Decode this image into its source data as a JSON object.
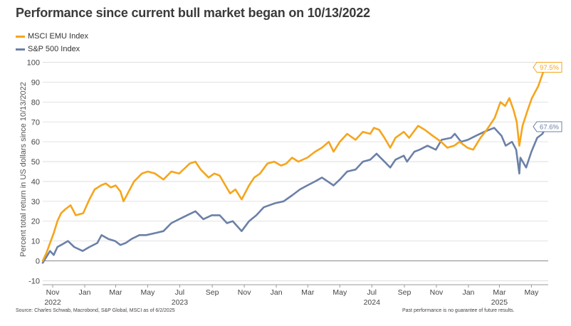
{
  "colors": {
    "emu": "#f5a51c",
    "sp": "#6b80a8",
    "grid": "#d9d9d9",
    "zero": "#8a8a8a"
  },
  "chart_data": {
    "type": "line",
    "title": "Performance since current bull market began on 10/13/2022",
    "ylabel": "Percent total return in US dollars since 10/13/2022",
    "xlabel": "",
    "ylim": [
      -12,
      102
    ],
    "y_ticks": [
      -10,
      0,
      10,
      20,
      30,
      40,
      50,
      60,
      70,
      80,
      90,
      100
    ],
    "x_range": [
      "2022-10-13",
      "2025-06-02"
    ],
    "x_ticks": [
      {
        "date": "2022-11-01",
        "label": "Nov"
      },
      {
        "date": "2023-01-01",
        "label": "Jan"
      },
      {
        "date": "2023-03-01",
        "label": "Mar"
      },
      {
        "date": "2023-05-01",
        "label": "May"
      },
      {
        "date": "2023-07-01",
        "label": "Jul"
      },
      {
        "date": "2023-09-01",
        "label": "Sep"
      },
      {
        "date": "2023-11-01",
        "label": "Nov"
      },
      {
        "date": "2024-01-01",
        "label": "Jan"
      },
      {
        "date": "2024-03-01",
        "label": "Mar"
      },
      {
        "date": "2024-05-01",
        "label": "May"
      },
      {
        "date": "2024-07-01",
        "label": "Jul"
      },
      {
        "date": "2024-09-01",
        "label": "Sep"
      },
      {
        "date": "2024-11-01",
        "label": "Nov"
      },
      {
        "date": "2025-01-01",
        "label": "Jan"
      },
      {
        "date": "2025-03-01",
        "label": "Mar"
      },
      {
        "date": "2025-05-01",
        "label": "May"
      }
    ],
    "year_labels": [
      {
        "date": "2022-11-01",
        "label": "2022"
      },
      {
        "date": "2023-07-01",
        "label": "2023"
      },
      {
        "date": "2024-07-01",
        "label": "2024"
      },
      {
        "date": "2025-03-01",
        "label": "2025"
      }
    ],
    "legend_position": "top-left",
    "grid": true,
    "series": [
      {
        "name": "MSCI EMU Index",
        "color": "#f5a51c",
        "end_label": "97.5%",
        "points": [
          [
            "2022-10-13",
            0
          ],
          [
            "2022-10-20",
            4
          ],
          [
            "2022-10-27",
            9
          ],
          [
            "2022-11-03",
            14
          ],
          [
            "2022-11-10",
            20
          ],
          [
            "2022-11-17",
            24
          ],
          [
            "2022-11-25",
            26
          ],
          [
            "2022-12-05",
            28
          ],
          [
            "2022-12-15",
            23
          ],
          [
            "2022-12-29",
            24
          ],
          [
            "2023-01-10",
            31
          ],
          [
            "2023-01-20",
            36
          ],
          [
            "2023-02-01",
            38
          ],
          [
            "2023-02-10",
            39
          ],
          [
            "2023-02-20",
            37
          ],
          [
            "2023-03-01",
            38
          ],
          [
            "2023-03-10",
            35
          ],
          [
            "2023-03-16",
            30
          ],
          [
            "2023-03-24",
            34
          ],
          [
            "2023-04-05",
            40
          ],
          [
            "2023-04-20",
            44
          ],
          [
            "2023-05-01",
            45
          ],
          [
            "2023-05-15",
            44
          ],
          [
            "2023-05-31",
            41
          ],
          [
            "2023-06-15",
            45
          ],
          [
            "2023-06-30",
            44
          ],
          [
            "2023-07-20",
            49
          ],
          [
            "2023-07-31",
            50
          ],
          [
            "2023-08-10",
            46
          ],
          [
            "2023-08-25",
            42
          ],
          [
            "2023-09-05",
            44
          ],
          [
            "2023-09-15",
            43
          ],
          [
            "2023-09-26",
            38
          ],
          [
            "2023-10-05",
            34
          ],
          [
            "2023-10-15",
            36
          ],
          [
            "2023-10-27",
            31
          ],
          [
            "2023-11-02",
            34
          ],
          [
            "2023-11-10",
            38
          ],
          [
            "2023-11-20",
            42
          ],
          [
            "2023-12-01",
            44
          ],
          [
            "2023-12-15",
            49
          ],
          [
            "2023-12-28",
            50
          ],
          [
            "2024-01-10",
            48
          ],
          [
            "2024-01-20",
            49
          ],
          [
            "2024-01-31",
            52
          ],
          [
            "2024-02-12",
            50
          ],
          [
            "2024-02-29",
            52
          ],
          [
            "2024-03-15",
            55
          ],
          [
            "2024-03-28",
            57
          ],
          [
            "2024-04-10",
            60
          ],
          [
            "2024-04-19",
            55
          ],
          [
            "2024-05-01",
            60
          ],
          [
            "2024-05-15",
            64
          ],
          [
            "2024-05-31",
            61
          ],
          [
            "2024-06-14",
            65
          ],
          [
            "2024-06-28",
            64
          ],
          [
            "2024-07-05",
            67
          ],
          [
            "2024-07-15",
            66
          ],
          [
            "2024-07-25",
            62
          ],
          [
            "2024-08-05",
            57
          ],
          [
            "2024-08-15",
            62
          ],
          [
            "2024-08-31",
            65
          ],
          [
            "2024-09-10",
            62
          ],
          [
            "2024-09-27",
            68
          ],
          [
            "2024-10-10",
            66
          ],
          [
            "2024-10-25",
            63
          ],
          [
            "2024-11-10",
            60
          ],
          [
            "2024-11-22",
            57
          ],
          [
            "2024-12-05",
            58
          ],
          [
            "2024-12-15",
            60
          ],
          [
            "2024-12-30",
            57
          ],
          [
            "2025-01-10",
            56
          ],
          [
            "2025-01-24",
            62
          ],
          [
            "2025-02-05",
            66
          ],
          [
            "2025-02-20",
            72
          ],
          [
            "2025-03-03",
            80
          ],
          [
            "2025-03-12",
            78
          ],
          [
            "2025-03-20",
            82
          ],
          [
            "2025-03-28",
            76
          ],
          [
            "2025-04-03",
            70
          ],
          [
            "2025-04-08",
            58
          ],
          [
            "2025-04-14",
            68
          ],
          [
            "2025-04-24",
            76
          ],
          [
            "2025-05-02",
            82
          ],
          [
            "2025-05-14",
            88
          ],
          [
            "2025-05-22",
            94
          ],
          [
            "2025-05-28",
            99
          ],
          [
            "2025-06-02",
            97.5
          ]
        ]
      },
      {
        "name": "S&P 500 Index",
        "color": "#6b80a8",
        "end_label": "67.6%",
        "points": [
          [
            "2022-10-13",
            -1
          ],
          [
            "2022-10-20",
            2
          ],
          [
            "2022-10-27",
            5
          ],
          [
            "2022-11-03",
            3
          ],
          [
            "2022-11-10",
            7
          ],
          [
            "2022-11-17",
            8
          ],
          [
            "2022-11-30",
            10
          ],
          [
            "2022-12-12",
            7
          ],
          [
            "2022-12-28",
            5
          ],
          [
            "2023-01-10",
            7
          ],
          [
            "2023-01-25",
            9
          ],
          [
            "2023-02-02",
            13
          ],
          [
            "2023-02-15",
            11
          ],
          [
            "2023-02-28",
            10
          ],
          [
            "2023-03-10",
            8
          ],
          [
            "2023-03-20",
            9
          ],
          [
            "2023-03-31",
            11
          ],
          [
            "2023-04-15",
            13
          ],
          [
            "2023-04-28",
            13
          ],
          [
            "2023-05-15",
            14
          ],
          [
            "2023-05-31",
            15
          ],
          [
            "2023-06-15",
            19
          ],
          [
            "2023-06-30",
            21
          ],
          [
            "2023-07-15",
            23
          ],
          [
            "2023-07-31",
            25
          ],
          [
            "2023-08-15",
            21
          ],
          [
            "2023-08-31",
            23
          ],
          [
            "2023-09-15",
            23
          ],
          [
            "2023-09-29",
            19
          ],
          [
            "2023-10-10",
            20
          ],
          [
            "2023-10-27",
            15
          ],
          [
            "2023-11-10",
            20
          ],
          [
            "2023-11-24",
            23
          ],
          [
            "2023-12-08",
            27
          ],
          [
            "2023-12-29",
            29
          ],
          [
            "2024-01-15",
            30
          ],
          [
            "2024-01-31",
            33
          ],
          [
            "2024-02-15",
            36
          ],
          [
            "2024-02-29",
            38
          ],
          [
            "2024-03-15",
            40
          ],
          [
            "2024-03-28",
            42
          ],
          [
            "2024-04-19",
            38
          ],
          [
            "2024-05-01",
            41
          ],
          [
            "2024-05-15",
            45
          ],
          [
            "2024-05-31",
            46
          ],
          [
            "2024-06-14",
            50
          ],
          [
            "2024-06-28",
            51
          ],
          [
            "2024-07-10",
            54
          ],
          [
            "2024-07-25",
            50
          ],
          [
            "2024-08-05",
            47
          ],
          [
            "2024-08-15",
            51
          ],
          [
            "2024-08-31",
            53
          ],
          [
            "2024-09-06",
            50
          ],
          [
            "2024-09-20",
            55
          ],
          [
            "2024-09-30",
            56
          ],
          [
            "2024-10-15",
            58
          ],
          [
            "2024-10-31",
            56
          ],
          [
            "2024-11-11",
            61
          ],
          [
            "2024-11-29",
            62
          ],
          [
            "2024-12-06",
            64
          ],
          [
            "2024-12-18",
            60
          ],
          [
            "2024-12-31",
            61
          ],
          [
            "2025-01-15",
            63
          ],
          [
            "2025-01-31",
            65
          ],
          [
            "2025-02-19",
            67
          ],
          [
            "2025-03-05",
            63
          ],
          [
            "2025-03-13",
            58
          ],
          [
            "2025-03-25",
            60
          ],
          [
            "2025-04-02",
            56
          ],
          [
            "2025-04-08",
            44
          ],
          [
            "2025-04-10",
            52
          ],
          [
            "2025-04-21",
            47
          ],
          [
            "2025-05-01",
            55
          ],
          [
            "2025-05-12",
            62
          ],
          [
            "2025-05-22",
            64
          ],
          [
            "2025-05-28",
            67
          ],
          [
            "2025-06-02",
            67.6
          ]
        ]
      }
    ]
  },
  "footer": {
    "source": "Source: Charles Schwab, Macrobond, S&P Global, MSCI as of 6/2/2025",
    "disclaimer": "Past performance is no guarantee of future results."
  }
}
